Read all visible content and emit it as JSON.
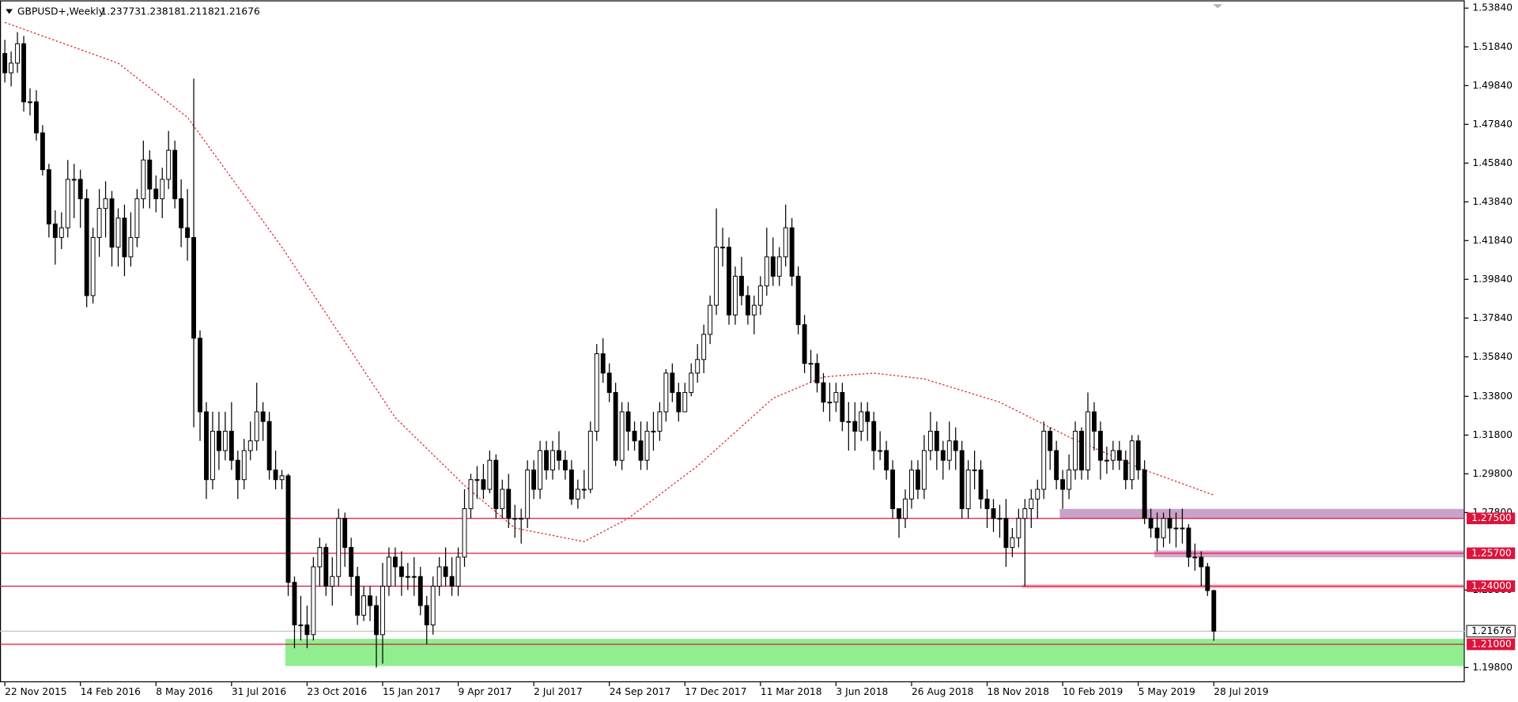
{
  "chart_data": {
    "type": "candlestick",
    "title": "GBPUSD+,Weekly",
    "header_ohlc": [
      1.23773,
      1.23818,
      1.21182,
      1.21676
    ],
    "current_price": {
      "value": 1.21676,
      "color": "#c0c0c0"
    },
    "bull_color": "#ffffff",
    "bear_color": "#000000",
    "categories": [
      "22 Nov 2015",
      null,
      null,
      null,
      null,
      null,
      null,
      null,
      null,
      null,
      null,
      null,
      "14 Feb 2016",
      null,
      null,
      null,
      null,
      null,
      null,
      null,
      null,
      null,
      null,
      null,
      "8 May 2016",
      null,
      null,
      null,
      null,
      null,
      null,
      null,
      null,
      null,
      null,
      null,
      "31 Jul 2016",
      null,
      null,
      null,
      null,
      null,
      null,
      null,
      null,
      null,
      null,
      null,
      "23 Oct 2016",
      null,
      null,
      null,
      null,
      null,
      null,
      null,
      null,
      null,
      null,
      null,
      "15 Jan 2017",
      null,
      null,
      null,
      null,
      null,
      null,
      null,
      null,
      null,
      null,
      null,
      "9 Apr 2017",
      null,
      null,
      null,
      null,
      null,
      null,
      null,
      null,
      null,
      null,
      null,
      "2 Jul 2017",
      null,
      null,
      null,
      null,
      null,
      null,
      null,
      null,
      null,
      null,
      null,
      "24 Sep 2017",
      null,
      null,
      null,
      null,
      null,
      null,
      null,
      null,
      null,
      null,
      null,
      "17 Dec 2017",
      null,
      null,
      null,
      null,
      null,
      null,
      null,
      null,
      null,
      null,
      null,
      "11 Mar 2018",
      null,
      null,
      null,
      null,
      null,
      null,
      null,
      null,
      null,
      null,
      null,
      "3 Jun 2018",
      null,
      null,
      null,
      null,
      null,
      null,
      null,
      null,
      null,
      null,
      null,
      "26 Aug 2018",
      null,
      null,
      null,
      null,
      null,
      null,
      null,
      null,
      null,
      null,
      null,
      "18 Nov 2018",
      null,
      null,
      null,
      null,
      null,
      null,
      null,
      null,
      null,
      null,
      null,
      "10 Feb 2019",
      null,
      null,
      null,
      null,
      null,
      null,
      null,
      null,
      null,
      null,
      null,
      "5 May 2019",
      null,
      null,
      null,
      null,
      null,
      null,
      null,
      null,
      null,
      null,
      null,
      "28 Jul 2019"
    ],
    "open": [
      1.515,
      1.505,
      1.51,
      1.52,
      1.49,
      1.49,
      1.474,
      1.455,
      1.427,
      1.42,
      1.425,
      1.45,
      1.45,
      1.44,
      1.39,
      1.42,
      1.435,
      1.44,
      1.415,
      1.43,
      1.41,
      1.42,
      1.44,
      1.46,
      1.445,
      1.44,
      1.45,
      1.465,
      1.44,
      1.425,
      1.42,
      1.368,
      1.33,
      1.295,
      1.32,
      1.31,
      1.32,
      1.305,
      1.295,
      1.31,
      1.315,
      1.33,
      1.325,
      1.3,
      1.295,
      1.297,
      1.242,
      1.22,
      1.22,
      1.215,
      1.25,
      1.26,
      1.24,
      1.245,
      1.275,
      1.26,
      1.245,
      1.225,
      1.235,
      1.23,
      1.215,
      1.24,
      1.255,
      1.25,
      1.245,
      1.245,
      1.245,
      1.23,
      1.22,
      1.24,
      1.25,
      1.245,
      1.24,
      1.255,
      1.28,
      1.295,
      1.295,
      1.29,
      1.305,
      1.28,
      1.29,
      1.275,
      1.275,
      1.275,
      1.3,
      1.29,
      1.31,
      1.3,
      1.31,
      1.305,
      1.3,
      1.285,
      1.29,
      1.29,
      1.32,
      1.36,
      1.35,
      1.34,
      1.305,
      1.33,
      1.32,
      1.315,
      1.305,
      1.32,
      1.32,
      1.33,
      1.35,
      1.34,
      1.33,
      1.34,
      1.35,
      1.357,
      1.37,
      1.385,
      1.415,
      1.415,
      1.38,
      1.4,
      1.39,
      1.38,
      1.385,
      1.395,
      1.41,
      1.4,
      1.41,
      1.425,
      1.4,
      1.375,
      1.355,
      1.355,
      1.345,
      1.335,
      1.335,
      1.34,
      1.325,
      1.325,
      1.32,
      1.33,
      1.325,
      1.31,
      1.31,
      1.3,
      1.28,
      1.275,
      1.285,
      1.3,
      1.29,
      1.31,
      1.32,
      1.31,
      1.305,
      1.315,
      1.31,
      1.28,
      1.3,
      1.3,
      1.285,
      1.28,
      1.275,
      1.275,
      1.26,
      1.265,
      1.275,
      1.28,
      1.285,
      1.29,
      1.32,
      1.31,
      1.295,
      1.29,
      1.3,
      1.32,
      1.3,
      1.33,
      1.32,
      1.305,
      1.305,
      1.31,
      1.305,
      1.295,
      1.315,
      1.3,
      1.275,
      1.27,
      1.265,
      1.275,
      1.27,
      1.27,
      1.27,
      1.255,
      1.255,
      1.25,
      1.23773
    ],
    "high": [
      1.522,
      1.516,
      1.526,
      1.524,
      1.497,
      1.496,
      1.478,
      1.458,
      1.434,
      1.433,
      1.46,
      1.458,
      1.455,
      1.445,
      1.425,
      1.445,
      1.449,
      1.444,
      1.435,
      1.437,
      1.433,
      1.445,
      1.47,
      1.465,
      1.452,
      1.456,
      1.475,
      1.47,
      1.45,
      1.445,
      1.502,
      1.372,
      1.335,
      1.33,
      1.33,
      1.33,
      1.335,
      1.31,
      1.316,
      1.325,
      1.345,
      1.335,
      1.33,
      1.31,
      1.3,
      1.298,
      1.245,
      1.235,
      1.23,
      1.255,
      1.265,
      1.262,
      1.255,
      1.28,
      1.278,
      1.265,
      1.25,
      1.24,
      1.24,
      1.235,
      1.252,
      1.26,
      1.26,
      1.258,
      1.252,
      1.255,
      1.25,
      1.235,
      1.245,
      1.255,
      1.26,
      1.255,
      1.26,
      1.29,
      1.298,
      1.302,
      1.303,
      1.31,
      1.308,
      1.295,
      1.298,
      1.282,
      1.28,
      1.305,
      1.305,
      1.315,
      1.315,
      1.315,
      1.32,
      1.31,
      1.305,
      1.295,
      1.3,
      1.325,
      1.365,
      1.368,
      1.355,
      1.345,
      1.335,
      1.335,
      1.325,
      1.325,
      1.325,
      1.33,
      1.335,
      1.352,
      1.355,
      1.345,
      1.345,
      1.355,
      1.365,
      1.375,
      1.39,
      1.435,
      1.425,
      1.42,
      1.405,
      1.41,
      1.395,
      1.39,
      1.4,
      1.425,
      1.42,
      1.415,
      1.437,
      1.43,
      1.405,
      1.38,
      1.362,
      1.36,
      1.35,
      1.345,
      1.345,
      1.345,
      1.335,
      1.335,
      1.335,
      1.335,
      1.33,
      1.32,
      1.315,
      1.305,
      1.28,
      1.29,
      1.305,
      1.305,
      1.318,
      1.33,
      1.325,
      1.315,
      1.325,
      1.322,
      1.315,
      1.305,
      1.31,
      1.305,
      1.29,
      1.285,
      1.282,
      1.285,
      1.27,
      1.28,
      1.285,
      1.29,
      1.295,
      1.325,
      1.322,
      1.315,
      1.3,
      1.308,
      1.325,
      1.322,
      1.34,
      1.335,
      1.325,
      1.312,
      1.315,
      1.315,
      1.31,
      1.318,
      1.318,
      1.305,
      1.28,
      1.278,
      1.278,
      1.28,
      1.278,
      1.28,
      1.272,
      1.262,
      1.258,
      1.252,
      1.23818
    ],
    "low": [
      1.5,
      1.498,
      1.505,
      1.485,
      1.483,
      1.47,
      1.452,
      1.42,
      1.406,
      1.414,
      1.42,
      1.43,
      1.425,
      1.384,
      1.386,
      1.41,
      1.42,
      1.405,
      1.405,
      1.4,
      1.405,
      1.415,
      1.435,
      1.435,
      1.433,
      1.43,
      1.445,
      1.435,
      1.415,
      1.408,
      1.322,
      1.315,
      1.285,
      1.29,
      1.3,
      1.305,
      1.3,
      1.285,
      1.29,
      1.305,
      1.31,
      1.315,
      1.295,
      1.29,
      1.29,
      1.235,
      1.208,
      1.212,
      1.208,
      1.212,
      1.24,
      1.235,
      1.23,
      1.24,
      1.25,
      1.235,
      1.22,
      1.222,
      1.222,
      1.198,
      1.2,
      1.235,
      1.24,
      1.235,
      1.238,
      1.235,
      1.225,
      1.21,
      1.215,
      1.235,
      1.24,
      1.235,
      1.235,
      1.25,
      1.275,
      1.285,
      1.285,
      1.288,
      1.275,
      1.275,
      1.27,
      1.265,
      1.262,
      1.27,
      1.285,
      1.285,
      1.295,
      1.295,
      1.3,
      1.295,
      1.282,
      1.28,
      1.285,
      1.288,
      1.315,
      1.345,
      1.335,
      1.302,
      1.3,
      1.31,
      1.31,
      1.3,
      1.3,
      1.31,
      1.315,
      1.325,
      1.335,
      1.325,
      1.33,
      1.338,
      1.345,
      1.35,
      1.365,
      1.38,
      1.405,
      1.375,
      1.375,
      1.385,
      1.375,
      1.37,
      1.38,
      1.39,
      1.395,
      1.395,
      1.405,
      1.395,
      1.37,
      1.35,
      1.345,
      1.34,
      1.33,
      1.325,
      1.33,
      1.32,
      1.31,
      1.31,
      1.315,
      1.315,
      1.3,
      1.305,
      1.295,
      1.275,
      1.265,
      1.27,
      1.28,
      1.285,
      1.285,
      1.305,
      1.3,
      1.295,
      1.3,
      1.3,
      1.275,
      1.275,
      1.29,
      1.28,
      1.27,
      1.268,
      1.265,
      1.25,
      1.255,
      1.26,
      1.24,
      1.27,
      1.275,
      1.285,
      1.3,
      1.29,
      1.28,
      1.285,
      1.295,
      1.295,
      1.295,
      1.31,
      1.295,
      1.298,
      1.3,
      1.3,
      1.29,
      1.29,
      1.295,
      1.272,
      1.265,
      1.258,
      1.26,
      1.262,
      1.26,
      1.262,
      1.25,
      1.248,
      1.24,
      1.235,
      1.21182
    ],
    "close": [
      1.505,
      1.51,
      1.52,
      1.49,
      1.49,
      1.474,
      1.455,
      1.427,
      1.42,
      1.425,
      1.45,
      1.45,
      1.44,
      1.39,
      1.42,
      1.435,
      1.44,
      1.415,
      1.43,
      1.41,
      1.42,
      1.44,
      1.46,
      1.445,
      1.44,
      1.45,
      1.465,
      1.44,
      1.425,
      1.42,
      1.368,
      1.33,
      1.295,
      1.32,
      1.31,
      1.32,
      1.305,
      1.295,
      1.31,
      1.315,
      1.33,
      1.325,
      1.3,
      1.295,
      1.297,
      1.242,
      1.22,
      1.22,
      1.215,
      1.25,
      1.26,
      1.24,
      1.245,
      1.275,
      1.26,
      1.245,
      1.225,
      1.235,
      1.23,
      1.215,
      1.24,
      1.255,
      1.25,
      1.245,
      1.245,
      1.245,
      1.23,
      1.22,
      1.24,
      1.25,
      1.245,
      1.24,
      1.255,
      1.28,
      1.295,
      1.295,
      1.29,
      1.305,
      1.28,
      1.29,
      1.275,
      1.275,
      1.275,
      1.3,
      1.29,
      1.31,
      1.3,
      1.31,
      1.305,
      1.3,
      1.285,
      1.29,
      1.29,
      1.32,
      1.36,
      1.35,
      1.34,
      1.305,
      1.33,
      1.32,
      1.315,
      1.305,
      1.32,
      1.32,
      1.33,
      1.35,
      1.34,
      1.33,
      1.34,
      1.35,
      1.357,
      1.37,
      1.385,
      1.415,
      1.415,
      1.38,
      1.4,
      1.39,
      1.38,
      1.385,
      1.395,
      1.41,
      1.4,
      1.41,
      1.425,
      1.4,
      1.375,
      1.355,
      1.355,
      1.345,
      1.335,
      1.335,
      1.34,
      1.325,
      1.325,
      1.32,
      1.33,
      1.325,
      1.31,
      1.31,
      1.3,
      1.28,
      1.275,
      1.285,
      1.3,
      1.29,
      1.31,
      1.32,
      1.31,
      1.305,
      1.315,
      1.31,
      1.28,
      1.3,
      1.3,
      1.285,
      1.28,
      1.275,
      1.275,
      1.26,
      1.265,
      1.275,
      1.28,
      1.285,
      1.29,
      1.32,
      1.31,
      1.295,
      1.29,
      1.3,
      1.32,
      1.3,
      1.33,
      1.32,
      1.305,
      1.305,
      1.31,
      1.305,
      1.295,
      1.315,
      1.3,
      1.275,
      1.27,
      1.265,
      1.275,
      1.27,
      1.27,
      1.27,
      1.255,
      1.255,
      1.25,
      1.23773,
      1.21676
    ],
    "moving_average": {
      "color": "#e0202a",
      "index": [
        0,
        18,
        29,
        44,
        62,
        73,
        81,
        92,
        99,
        110,
        122,
        130,
        138,
        146,
        158,
        169,
        181,
        192
      ],
      "values": [
        1.531,
        1.51,
        1.482,
        1.415,
        1.327,
        1.292,
        1.27,
        1.263,
        1.275,
        1.302,
        1.337,
        1.348,
        1.35,
        1.347,
        1.335,
        1.317,
        1.3,
        1.287
      ]
    },
    "levels": [
      {
        "value": 1.275,
        "label": "1.27500"
      },
      {
        "value": 1.257,
        "label": "1.25700"
      },
      {
        "value": 1.24,
        "label": "1.24000"
      },
      {
        "value": 1.21,
        "label": "1.21000"
      }
    ],
    "level_color": "#dc143c",
    "zones": [
      {
        "from": 45,
        "top": 1.2128,
        "bottom": 1.1988,
        "color": "#90ee90"
      },
      {
        "from": 168,
        "top": 1.2799,
        "bottom": 1.2749,
        "color": "#c8a2c8"
      },
      {
        "from": 183,
        "top": 1.2584,
        "bottom": 1.2549,
        "color": "#d8a8d0"
      },
      {
        "from": 162,
        "top": 1.2409,
        "bottom": 1.2389,
        "color": "#f4b8c8"
      }
    ],
    "ylim": [
      1.1904,
      1.5424
    ],
    "yticks": [
      {
        "value": 1.5384,
        "label": "1.53840"
      },
      {
        "value": 1.5184,
        "label": "1.51840"
      },
      {
        "value": 1.4984,
        "label": "1.49840"
      },
      {
        "value": 1.4784,
        "label": "1.47840"
      },
      {
        "value": 1.4584,
        "label": "1.45840"
      },
      {
        "value": 1.4384,
        "label": "1.43840"
      },
      {
        "value": 1.4184,
        "label": "1.41840"
      },
      {
        "value": 1.3984,
        "label": "1.39840"
      },
      {
        "value": 1.3784,
        "label": "1.37840"
      },
      {
        "value": 1.3584,
        "label": "1.35840"
      },
      {
        "value": 1.338,
        "label": "1.33800"
      },
      {
        "value": 1.318,
        "label": "1.31800"
      },
      {
        "value": 1.298,
        "label": "1.29800"
      },
      {
        "value": 1.278,
        "label": "1.27800"
      },
      {
        "value": 1.238,
        "label": "1.23800"
      },
      {
        "value": 1.198,
        "label": "1.19800"
      }
    ]
  }
}
